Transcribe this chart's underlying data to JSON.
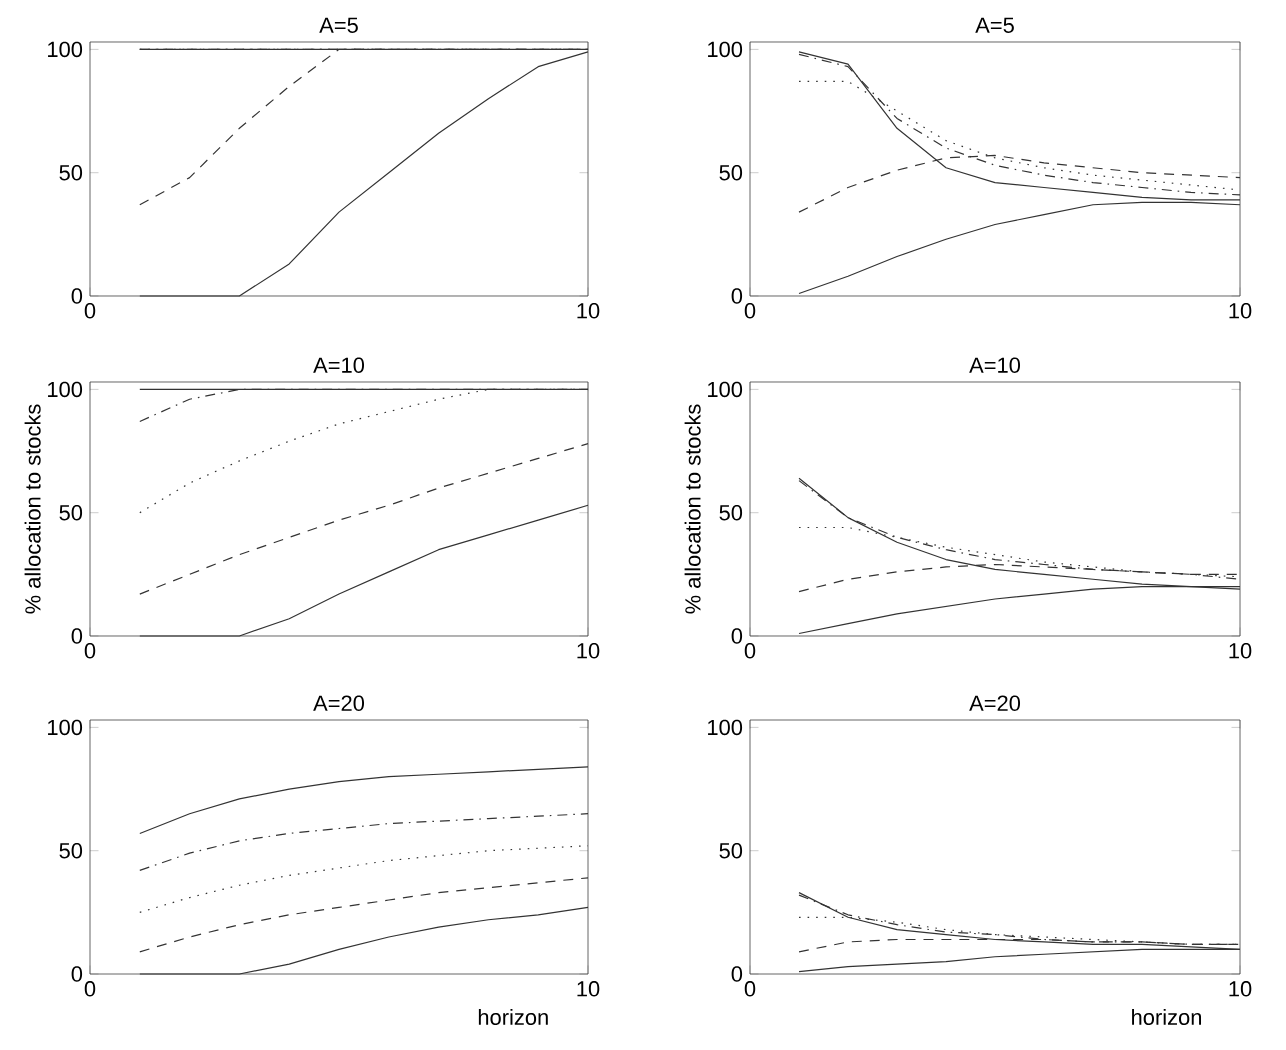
{
  "chart_data": [
    {
      "type": "line",
      "title": "A=5",
      "x": [
        1,
        2,
        3,
        4,
        5,
        6,
        7,
        8,
        9,
        10
      ],
      "xlim": [
        0,
        10
      ],
      "ylim": [
        0,
        103
      ],
      "xticks": [
        0,
        10
      ],
      "yticks": [
        0,
        50,
        100
      ],
      "series": [
        {
          "color": "#333333",
          "line_style": "solid",
          "values": [
            0,
            0,
            0,
            13,
            34,
            50,
            66,
            80,
            93,
            99
          ]
        },
        {
          "color": "#333333",
          "line_style": "dashed",
          "values": [
            37,
            48,
            68,
            85,
            100,
            100,
            100,
            100,
            100,
            100
          ]
        },
        {
          "color": "#333333",
          "line_style": "dotted",
          "values": [
            100,
            100,
            100,
            100,
            100,
            100,
            100,
            100,
            100,
            100
          ]
        },
        {
          "color": "#333333",
          "line_style": "dashdot",
          "values": [
            100,
            100,
            100,
            100,
            100,
            100,
            100,
            100,
            100,
            100
          ]
        },
        {
          "color": "#333333",
          "line_style": "solid",
          "values": [
            100,
            100,
            100,
            100,
            100,
            100,
            100,
            100,
            100,
            100
          ]
        }
      ]
    },
    {
      "type": "line",
      "title": "A=5",
      "x": [
        1,
        2,
        3,
        4,
        5,
        6,
        7,
        8,
        9,
        10
      ],
      "xlim": [
        0,
        10
      ],
      "ylim": [
        0,
        103
      ],
      "xticks": [
        0,
        10
      ],
      "yticks": [
        0,
        50,
        100
      ],
      "series": [
        {
          "color": "#333333",
          "line_style": "solid",
          "values": [
            1,
            8,
            16,
            23,
            29,
            33,
            37,
            38,
            38,
            37
          ]
        },
        {
          "color": "#333333",
          "line_style": "dashed",
          "values": [
            34,
            44,
            51,
            56,
            57,
            54,
            52,
            50,
            49,
            48
          ]
        },
        {
          "color": "#333333",
          "line_style": "dotted",
          "values": [
            87,
            87,
            75,
            63,
            56,
            52,
            49,
            47,
            45,
            43
          ]
        },
        {
          "color": "#333333",
          "line_style": "dashdot",
          "values": [
            98,
            93,
            72,
            60,
            53,
            49,
            46,
            44,
            42,
            41
          ]
        },
        {
          "color": "#333333",
          "line_style": "solid",
          "values": [
            99,
            94,
            68,
            52,
            46,
            44,
            42,
            40,
            39,
            39
          ]
        }
      ]
    },
    {
      "type": "line",
      "title": "A=10",
      "ylabel": "% allocation to stocks",
      "x": [
        1,
        2,
        3,
        4,
        5,
        6,
        7,
        8,
        9,
        10
      ],
      "xlim": [
        0,
        10
      ],
      "ylim": [
        0,
        103
      ],
      "xticks": [
        0,
        10
      ],
      "yticks": [
        0,
        50,
        100
      ],
      "series": [
        {
          "color": "#333333",
          "line_style": "solid",
          "values": [
            0,
            0,
            0,
            7,
            17,
            26,
            35,
            41,
            47,
            53
          ]
        },
        {
          "color": "#333333",
          "line_style": "dashed",
          "values": [
            17,
            25,
            33,
            40,
            47,
            53,
            60,
            66,
            72,
            78
          ]
        },
        {
          "color": "#333333",
          "line_style": "dotted",
          "values": [
            50,
            62,
            71,
            79,
            86,
            91,
            96,
            100,
            100,
            100
          ]
        },
        {
          "color": "#333333",
          "line_style": "dashdot",
          "values": [
            87,
            96,
            100,
            100,
            100,
            100,
            100,
            100,
            100,
            100
          ]
        },
        {
          "color": "#333333",
          "line_style": "solid",
          "values": [
            100,
            100,
            100,
            100,
            100,
            100,
            100,
            100,
            100,
            100
          ]
        }
      ]
    },
    {
      "type": "line",
      "title": "A=10",
      "ylabel": "% allocation to stocks",
      "x": [
        1,
        2,
        3,
        4,
        5,
        6,
        7,
        8,
        9,
        10
      ],
      "xlim": [
        0,
        10
      ],
      "ylim": [
        0,
        103
      ],
      "xticks": [
        0,
        10
      ],
      "yticks": [
        0,
        50,
        100
      ],
      "series": [
        {
          "color": "#333333",
          "line_style": "solid",
          "values": [
            1,
            5,
            9,
            12,
            15,
            17,
            19,
            20,
            20,
            20
          ]
        },
        {
          "color": "#333333",
          "line_style": "dashed",
          "values": [
            18,
            23,
            26,
            28,
            29,
            28,
            27,
            26,
            25,
            25
          ]
        },
        {
          "color": "#333333",
          "line_style": "dotted",
          "values": [
            44,
            44,
            40,
            36,
            33,
            30,
            28,
            26,
            25,
            24
          ]
        },
        {
          "color": "#333333",
          "line_style": "dashdot",
          "values": [
            63,
            48,
            40,
            35,
            31,
            29,
            27,
            26,
            25,
            23
          ]
        },
        {
          "color": "#333333",
          "line_style": "solid",
          "values": [
            64,
            48,
            38,
            31,
            27,
            25,
            23,
            21,
            20,
            19
          ]
        }
      ]
    },
    {
      "type": "line",
      "title": "A=20",
      "xlabel": "horizon",
      "x": [
        1,
        2,
        3,
        4,
        5,
        6,
        7,
        8,
        9,
        10
      ],
      "xlim": [
        0,
        10
      ],
      "ylim": [
        0,
        103
      ],
      "xticks": [
        0,
        10
      ],
      "yticks": [
        0,
        50,
        100
      ],
      "series": [
        {
          "color": "#333333",
          "line_style": "solid",
          "values": [
            0,
            0,
            0,
            4,
            10,
            15,
            19,
            22,
            24,
            27
          ]
        },
        {
          "color": "#333333",
          "line_style": "dashed",
          "values": [
            9,
            15,
            20,
            24,
            27,
            30,
            33,
            35,
            37,
            39
          ]
        },
        {
          "color": "#333333",
          "line_style": "dotted",
          "values": [
            25,
            31,
            36,
            40,
            43,
            46,
            48,
            50,
            51,
            52
          ]
        },
        {
          "color": "#333333",
          "line_style": "dashdot",
          "values": [
            42,
            49,
            54,
            57,
            59,
            61,
            62,
            63,
            64,
            65
          ]
        },
        {
          "color": "#333333",
          "line_style": "solid",
          "values": [
            57,
            65,
            71,
            75,
            78,
            80,
            81,
            82,
            83,
            84
          ]
        }
      ]
    },
    {
      "type": "line",
      "title": "A=20",
      "xlabel": "horizon",
      "x": [
        1,
        2,
        3,
        4,
        5,
        6,
        7,
        8,
        9,
        10
      ],
      "xlim": [
        0,
        10
      ],
      "ylim": [
        0,
        103
      ],
      "xticks": [
        0,
        10
      ],
      "yticks": [
        0,
        50,
        100
      ],
      "series": [
        {
          "color": "#333333",
          "line_style": "solid",
          "values": [
            1,
            3,
            4,
            5,
            7,
            8,
            9,
            10,
            10,
            10
          ]
        },
        {
          "color": "#333333",
          "line_style": "dashed",
          "values": [
            9,
            13,
            14,
            14,
            14,
            14,
            13,
            13,
            12,
            12
          ]
        },
        {
          "color": "#333333",
          "line_style": "dotted",
          "values": [
            23,
            23,
            21,
            18,
            16,
            15,
            14,
            13,
            12,
            12
          ]
        },
        {
          "color": "#333333",
          "line_style": "dashdot",
          "values": [
            32,
            24,
            20,
            17,
            16,
            14,
            13,
            13,
            12,
            12
          ]
        },
        {
          "color": "#333333",
          "line_style": "solid",
          "values": [
            33,
            23,
            18,
            16,
            14,
            13,
            12,
            12,
            11,
            10
          ]
        }
      ]
    }
  ]
}
